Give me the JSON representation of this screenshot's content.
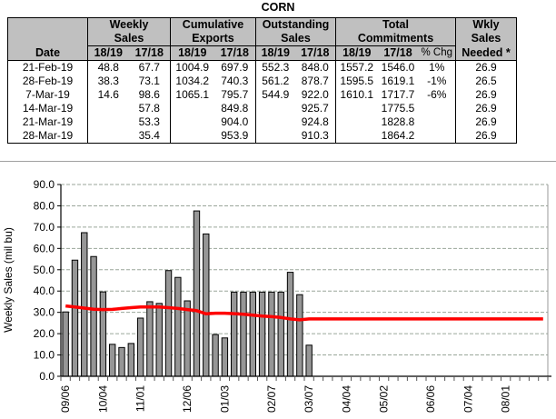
{
  "title": "CORN",
  "table": {
    "date_header": "Date",
    "groups": [
      {
        "label1": "Weekly",
        "label2": "Sales",
        "subs": [
          "18/19",
          "17/18"
        ]
      },
      {
        "label1": "Cumulative",
        "label2": "Exports",
        "subs": [
          "18/19",
          "17/18"
        ]
      },
      {
        "label1": "Outstanding",
        "label2": "Sales",
        "subs": [
          "18/19",
          "17/18"
        ]
      },
      {
        "label1": "Total",
        "label2": "Commitments",
        "subs": [
          "18/19",
          "17/18",
          "% Chg"
        ]
      },
      {
        "label1": "Wkly",
        "label2": "Sales",
        "subs": [
          "Needed *"
        ]
      }
    ],
    "rows": [
      [
        "21-Feb-19",
        "48.8",
        "67.7",
        "1004.9",
        "697.9",
        "552.3",
        "848.0",
        "1557.2",
        "1546.0",
        "1%",
        "26.9"
      ],
      [
        "28-Feb-19",
        "38.3",
        "73.1",
        "1034.2",
        "740.3",
        "561.2",
        "878.7",
        "1595.5",
        "1619.1",
        "-1%",
        "26.5"
      ],
      [
        "7-Mar-19",
        "14.6",
        "98.6",
        "1065.1",
        "795.7",
        "544.9",
        "922.0",
        "1610.1",
        "1717.7",
        "-6%",
        "26.9"
      ],
      [
        "14-Mar-19",
        "",
        "57.8",
        "",
        "849.8",
        "",
        "925.7",
        "",
        "1775.5",
        "",
        "26.9"
      ],
      [
        "21-Mar-19",
        "",
        "53.3",
        "",
        "904.0",
        "",
        "924.8",
        "",
        "1828.8",
        "",
        "26.9"
      ],
      [
        "28-Mar-19",
        "",
        "35.4",
        "",
        "953.9",
        "",
        "910.3",
        "",
        "1864.2",
        "",
        "26.9"
      ]
    ]
  },
  "chart_data": {
    "type": "bar",
    "title": "",
    "xlabel": "",
    "ylabel": "Weekly Sales (mil bu)",
    "ylim": [
      0,
      90
    ],
    "yticks": [
      "0.0",
      "10.0",
      "20.0",
      "30.0",
      "40.0",
      "50.0",
      "60.0",
      "70.0",
      "80.0",
      "90.0"
    ],
    "total_weeks": 52,
    "x_tick_labels": [
      {
        "week": 0,
        "label": "09/06"
      },
      {
        "week": 4,
        "label": "10/04"
      },
      {
        "week": 8,
        "label": "11/01"
      },
      {
        "week": 13,
        "label": "12/06"
      },
      {
        "week": 17,
        "label": "01/03"
      },
      {
        "week": 22,
        "label": "02/07"
      },
      {
        "week": 26,
        "label": "03/07"
      },
      {
        "week": 30,
        "label": "04/04"
      },
      {
        "week": 34,
        "label": "05/02"
      },
      {
        "week": 39,
        "label": "06/06"
      },
      {
        "week": 43,
        "label": "07/04"
      },
      {
        "week": 47,
        "label": "08/01"
      }
    ],
    "series": [
      {
        "name": "Weekly Sales 18/19",
        "type": "bar",
        "color": "#969696",
        "values": [
          30.2,
          54.5,
          67.4,
          56.2,
          39.6,
          15.0,
          13.5,
          15.4,
          27.3,
          35.0,
          34.2,
          49.6,
          46.4,
          35.4,
          77.6,
          66.8,
          19.6,
          18.0,
          39.5,
          39.5,
          39.5,
          39.5,
          39.5,
          39.5,
          48.8,
          38.3,
          14.6
        ]
      },
      {
        "name": "Weekly Sales Needed",
        "type": "line",
        "color": "#ff0000",
        "values": [
          33.0,
          32.5,
          32.0,
          31.5,
          31.3,
          31.4,
          31.8,
          32.2,
          32.5,
          32.6,
          32.5,
          32.2,
          31.8,
          31.3,
          30.8,
          29.3,
          29.6,
          29.6,
          29.4,
          29.1,
          28.7,
          28.3,
          28.0,
          27.6,
          26.9,
          26.5,
          26.9,
          26.9,
          26.9,
          26.9,
          26.9,
          26.9,
          26.9,
          26.9,
          26.9,
          26.9,
          26.9,
          26.9,
          26.9,
          26.9,
          26.9,
          26.9,
          26.9,
          26.9,
          26.9,
          26.9,
          26.9,
          26.9,
          26.9,
          26.9,
          26.9,
          26.9
        ]
      }
    ],
    "grid": true,
    "legend": "none"
  },
  "colors": {
    "header_bg": "#c0c0c0",
    "bar_fill": "#969696",
    "line": "#ff0000",
    "grid": "#9aa69a"
  }
}
